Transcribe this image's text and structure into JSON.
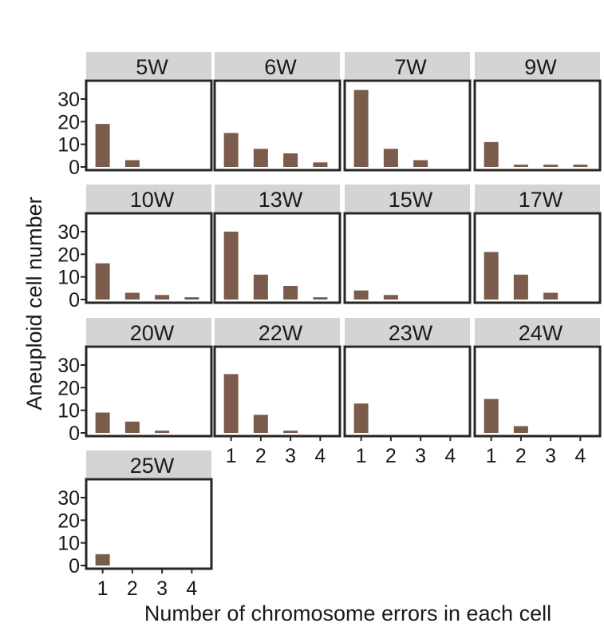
{
  "chart_data": {
    "type": "bar",
    "layout": "faceted-grid",
    "xlabel": "Number of chromosome errors in each cell",
    "ylabel": "Aneuploid cell number",
    "categories": [
      "1",
      "2",
      "3",
      "4"
    ],
    "y_ticks": [
      0,
      10,
      20,
      30
    ],
    "ylim": [
      0,
      36
    ],
    "bar_color": "#7b5b4b",
    "strip_color": "#d3d4d6",
    "panels": [
      {
        "label": "5W",
        "values": [
          19,
          3,
          0,
          0
        ]
      },
      {
        "label": "6W",
        "values": [
          15,
          8,
          6,
          2
        ]
      },
      {
        "label": "7W",
        "values": [
          34,
          8,
          3,
          0
        ]
      },
      {
        "label": "9W",
        "values": [
          11,
          1,
          1,
          1
        ]
      },
      {
        "label": "10W",
        "values": [
          16,
          3,
          2,
          1
        ]
      },
      {
        "label": "13W",
        "values": [
          30,
          11,
          6,
          1
        ]
      },
      {
        "label": "15W",
        "values": [
          4,
          2,
          0,
          0
        ]
      },
      {
        "label": "17W",
        "values": [
          21,
          11,
          3,
          0
        ]
      },
      {
        "label": "20W",
        "values": [
          9,
          5,
          1,
          0
        ]
      },
      {
        "label": "22W",
        "values": [
          26,
          8,
          1,
          0
        ]
      },
      {
        "label": "23W",
        "values": [
          13,
          0,
          0,
          0
        ]
      },
      {
        "label": "24W",
        "values": [
          15,
          3,
          0,
          0
        ]
      },
      {
        "label": "25W",
        "values": [
          5,
          0,
          0,
          0
        ]
      }
    ]
  }
}
